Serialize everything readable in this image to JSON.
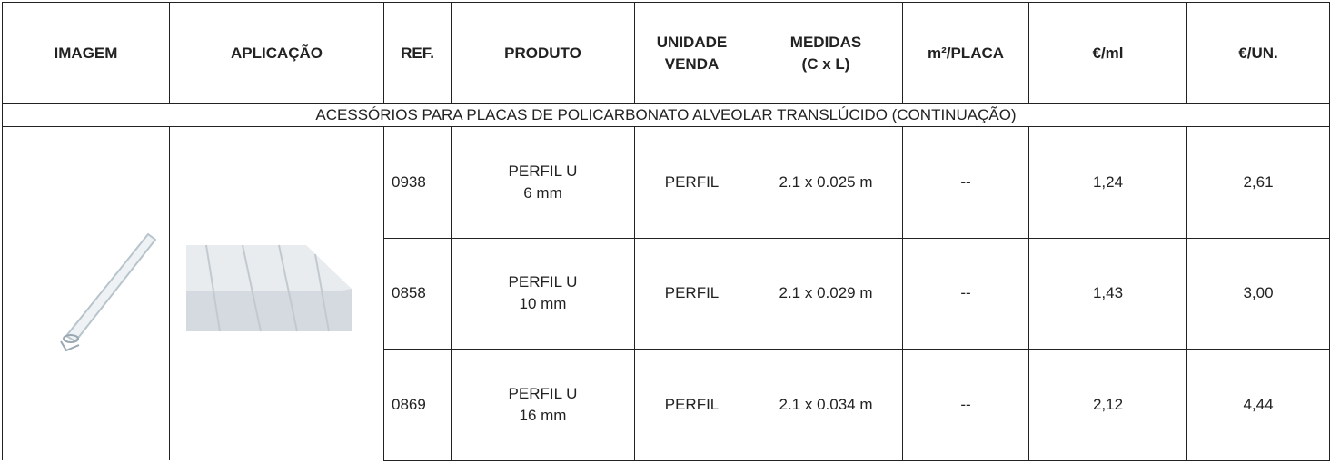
{
  "header": {
    "columns": [
      "IMAGEM",
      "APLICAÇÃO",
      "REF.",
      "PRODUTO",
      "UNIDADE\nVENDA",
      "MEDIDAS\n(C x L)",
      "m²/PLACA",
      "€/ml",
      "€/UN."
    ]
  },
  "section": "ACESSÓRIOS PARA PLACAS DE POLICARBONATO ALVEOLAR TRANSLÚCIDO (CONTINUAÇÃO)",
  "rows": [
    {
      "ref": "0938",
      "produto": "PERFIL U\n6 mm",
      "unidade": "PERFIL",
      "medidas": "2.1 x 0.025 m",
      "m2_placa": "--",
      "eur_ml": "1,24",
      "eur_un": "2,61"
    },
    {
      "ref": "0858",
      "produto": "PERFIL U\n10 mm",
      "unidade": "PERFIL",
      "medidas": "2.1 x 0.029 m",
      "m2_placa": "--",
      "eur_ml": "1,43",
      "eur_un": "3,00"
    },
    {
      "ref": "0869",
      "produto": "PERFIL U\n16 mm",
      "unidade": "PERFIL",
      "medidas": "2.1 x 0.034 m",
      "m2_placa": "--",
      "eur_ml": "2,12",
      "eur_un": "4,44"
    }
  ]
}
